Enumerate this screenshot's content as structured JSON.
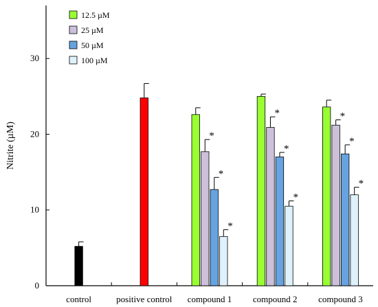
{
  "chart_data": {
    "type": "bar",
    "ylabel": "Nitrite (µM)",
    "xlabel": "",
    "title": "",
    "ylim": [
      0,
      37
    ],
    "yticks": [
      0,
      10,
      20,
      30
    ],
    "grid": false,
    "legend_position": "top-left",
    "categories": [
      "control",
      "positive control",
      "compound 1",
      "compound 2",
      "compound 3"
    ],
    "controls": [
      {
        "category": "control",
        "value": 5.2,
        "error": 0.6,
        "color": "#000000"
      },
      {
        "category": "positive control",
        "value": 24.8,
        "error": 1.9,
        "color": "#ff0000"
      }
    ],
    "series": [
      {
        "name": "12.5 µM",
        "color": "#99ff33",
        "values": [
          null,
          null,
          22.6,
          25.0,
          23.6
        ],
        "errors": [
          null,
          null,
          0.9,
          0.3,
          0.9
        ],
        "significant": [
          false,
          false,
          false,
          false,
          false
        ]
      },
      {
        "name": "25 µM",
        "color": "#ccc0da",
        "values": [
          null,
          null,
          17.7,
          20.9,
          21.2
        ],
        "errors": [
          null,
          null,
          1.6,
          1.4,
          0.7
        ],
        "significant": [
          false,
          false,
          true,
          true,
          true
        ]
      },
      {
        "name": "50 µM",
        "color": "#66a3e0",
        "values": [
          null,
          null,
          12.7,
          17.0,
          17.4
        ],
        "errors": [
          null,
          null,
          1.6,
          0.6,
          1.2
        ],
        "significant": [
          false,
          false,
          true,
          true,
          true
        ]
      },
      {
        "name": "100 µM",
        "color": "#dff2fb",
        "values": [
          null,
          null,
          6.5,
          10.5,
          12.0
        ],
        "errors": [
          null,
          null,
          0.9,
          0.7,
          1.0
        ],
        "significant": [
          false,
          false,
          true,
          true,
          true
        ]
      }
    ],
    "significance_marker": "*"
  }
}
